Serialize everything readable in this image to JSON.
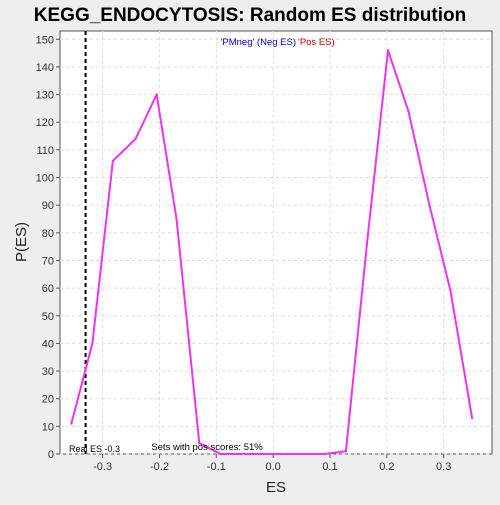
{
  "chart_data": {
    "type": "line",
    "title": "KEGG_ENDOCYTOSIS: Random ES distribution",
    "xlabel": "ES",
    "ylabel": "P(ES)",
    "xlim": [
      -0.375,
      0.385
    ],
    "ylim": [
      0,
      153
    ],
    "xticks": [
      -0.3,
      -0.2,
      -0.1,
      0.0,
      0.1,
      0.2,
      0.3
    ],
    "xtick_labels": [
      "-0.3",
      "-0.2",
      "-0.1",
      "0.0",
      "0.1",
      "0.2",
      "0.3"
    ],
    "yticks": [
      0,
      10,
      20,
      30,
      40,
      50,
      60,
      70,
      80,
      90,
      100,
      110,
      120,
      130,
      140,
      150
    ],
    "ytick_labels": [
      "0",
      "10",
      "20",
      "30",
      "40",
      "50",
      "60",
      "70",
      "80",
      "90",
      "100",
      "110",
      "120",
      "130",
      "140",
      "150"
    ],
    "grid": true,
    "legend": [
      {
        "label": "'PMneg' (Neg ES)",
        "color": "#0000cc"
      },
      {
        "label": "'Pos ES)",
        "color": "#cc0000"
      }
    ],
    "legend_placement": "top-center",
    "series": [
      {
        "color": "#ee33ee",
        "x": [
          -0.355,
          -0.318,
          -0.282,
          -0.242,
          -0.205,
          -0.17,
          -0.13,
          -0.093,
          -0.058,
          -0.022,
          0.014,
          0.05,
          0.09,
          0.128,
          0.165,
          0.202,
          0.238,
          0.275,
          0.312,
          0.35
        ],
        "y": [
          11,
          40,
          106,
          114,
          130,
          85,
          4,
          0,
          0,
          0,
          0,
          0,
          0,
          1,
          76,
          146,
          124,
          90,
          59,
          13
        ]
      }
    ],
    "real_es": {
      "x": -0.33,
      "label": "Real ES -0.3"
    },
    "annotations": [
      {
        "text": "Sets with pos scores: 51%",
        "x": -0.1,
        "y": 1.5
      }
    ],
    "colors": {
      "panel": "#ffffff",
      "frame": "#555555",
      "line": "#ee33ee",
      "grid": "#dddddd",
      "background": "#eeeeee"
    }
  }
}
